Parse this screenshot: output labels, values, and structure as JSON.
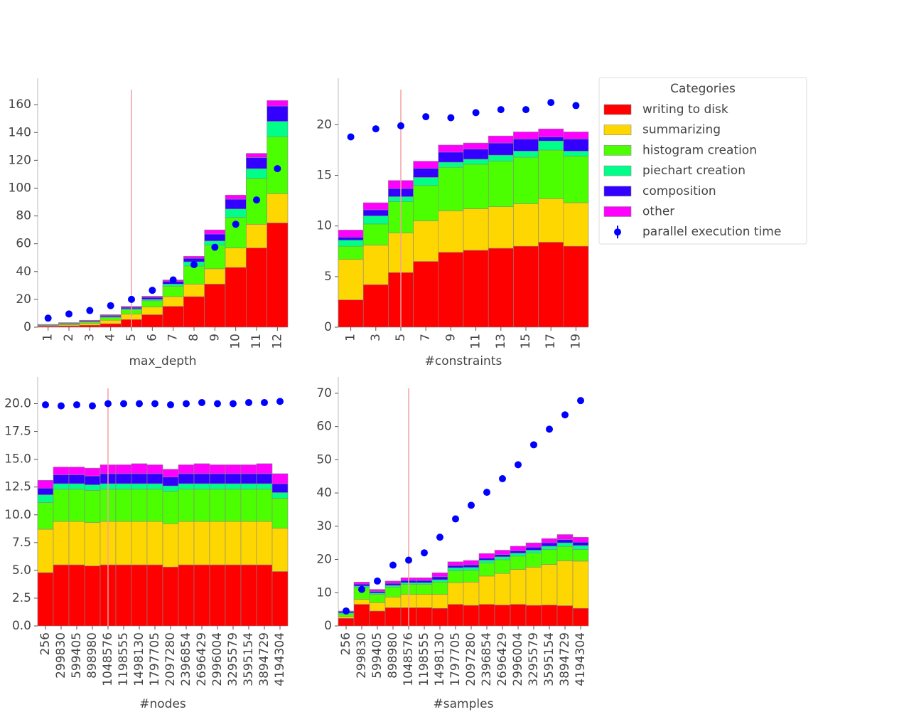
{
  "chart_data": [
    {
      "type": "stacked_bar",
      "xlabel": "max_depth",
      "legend_title": "Categories",
      "legend": "outside right",
      "vline_category": "5",
      "categories": [
        "1",
        "2",
        "3",
        "4",
        "5",
        "6",
        "7",
        "8",
        "9",
        "10",
        "11",
        "12"
      ],
      "ylim": [
        0,
        179
      ],
      "yticks": [
        0,
        20,
        40,
        60,
        80,
        100,
        120,
        140,
        160
      ],
      "series": [
        {
          "name": "writing to disk",
          "color": "#ff0000",
          "values": [
            0.8,
            1,
            1.5,
            2.5,
            5.5,
            9,
            15,
            22,
            31,
            43,
            57,
            75
          ]
        },
        {
          "name": "summarizing",
          "color": "#ffd700",
          "values": [
            0.4,
            0.8,
            1.2,
            2.5,
            4,
            5.5,
            7,
            9,
            11,
            14,
            17,
            21
          ]
        },
        {
          "name": "histogram creation",
          "color": "#4cff00",
          "values": [
            0.3,
            0.6,
            1,
            2,
            3,
            4.5,
            7.5,
            13,
            17,
            22,
            33,
            41
          ]
        },
        {
          "name": "piechart creation",
          "color": "#00ff88",
          "values": [
            0.1,
            0.2,
            0.3,
            0.5,
            0.8,
            1,
            1.5,
            3,
            3,
            6,
            7,
            11
          ]
        },
        {
          "name": "composition",
          "color": "#3300ff",
          "values": [
            0.2,
            0.4,
            0.6,
            1,
            1,
            1.5,
            2,
            2.5,
            5,
            7,
            8,
            11
          ]
        },
        {
          "name": "other",
          "color": "#ff00ff",
          "values": [
            0.2,
            0.3,
            0.4,
            0.5,
            0.7,
            0.8,
            1,
            1.5,
            3,
            3,
            3,
            4
          ]
        }
      ],
      "points": {
        "name": "parallel execution time",
        "color": "#0000ff",
        "values": [
          6.5,
          9.5,
          12,
          15.5,
          20,
          26.5,
          34,
          45,
          57.5,
          74,
          91.5,
          114
        ]
      }
    },
    {
      "type": "stacked_bar",
      "xlabel": "#constraints",
      "vline_category": "5",
      "categories": [
        "1",
        "3",
        "5",
        "7",
        "9",
        "11",
        "13",
        "15",
        "17",
        "19"
      ],
      "ylim": [
        0,
        24.6
      ],
      "yticks": [
        0,
        5,
        10,
        15,
        20
      ],
      "series": [
        {
          "values": [
            2.7,
            4.2,
            5.4,
            6.5,
            7.4,
            7.6,
            7.8,
            8,
            8.4,
            8
          ]
        },
        {
          "values": [
            4,
            3.9,
            3.9,
            4,
            4.1,
            4.1,
            4.1,
            4.2,
            4.3,
            4.3
          ]
        },
        {
          "values": [
            1.3,
            2.1,
            3.1,
            3.5,
            4.3,
            4.4,
            4.5,
            4.6,
            4.8,
            4.6
          ]
        },
        {
          "values": [
            0.6,
            0.8,
            0.5,
            0.8,
            0.5,
            0.5,
            0.6,
            0.6,
            0.9,
            0.5
          ]
        },
        {
          "values": [
            0.3,
            0.6,
            0.8,
            0.9,
            1,
            1,
            1.2,
            1.2,
            0.4,
            1.2
          ]
        },
        {
          "values": [
            0.7,
            0.7,
            0.8,
            0.7,
            0.7,
            0.6,
            0.7,
            0.7,
            0.8,
            0.7
          ]
        }
      ],
      "points": {
        "values": [
          18.8,
          19.6,
          19.9,
          20.8,
          20.7,
          21.2,
          21.5,
          21.5,
          22.2,
          21.9
        ]
      }
    },
    {
      "type": "stacked_bar",
      "xlabel": "#nodes",
      "vline_category": "1048576",
      "categories": [
        "256",
        "299830",
        "599405",
        "898980",
        "1048576",
        "1198555",
        "1498130",
        "1797705",
        "2097280",
        "2396854",
        "2696429",
        "2996004",
        "3295579",
        "3595154",
        "3894729",
        "4194304"
      ],
      "ylim": [
        0,
        22.4
      ],
      "yticks": [
        {
          "value": 0,
          "label": "0.0"
        },
        {
          "value": 2.5,
          "label": "2.5"
        },
        {
          "value": 5,
          "label": "5.0"
        },
        {
          "value": 7.5,
          "label": "7.5"
        },
        {
          "value": 10,
          "label": "10.0"
        },
        {
          "value": 12.5,
          "label": "12.5"
        },
        {
          "value": 15,
          "label": "15.0"
        },
        {
          "value": 17.5,
          "label": "17.5"
        },
        {
          "value": 20,
          "label": "20.0"
        }
      ],
      "series": [
        {
          "values": [
            4.8,
            5.5,
            5.5,
            5.4,
            5.5,
            5.5,
            5.5,
            5.5,
            5.3,
            5.5,
            5.5,
            5.5,
            5.5,
            5.5,
            5.5,
            4.9
          ]
        },
        {
          "values": [
            3.9,
            3.9,
            3.9,
            3.9,
            3.9,
            3.9,
            3.9,
            3.9,
            3.9,
            3.9,
            3.9,
            3.9,
            3.9,
            3.9,
            3.9,
            3.9
          ]
        },
        {
          "values": [
            2.4,
            2.9,
            2.9,
            2.9,
            2.9,
            2.9,
            2.9,
            2.9,
            2.9,
            2.9,
            2.9,
            2.9,
            2.9,
            2.9,
            2.9,
            2.7
          ]
        },
        {
          "values": [
            0.7,
            0.5,
            0.5,
            0.5,
            0.5,
            0.5,
            0.5,
            0.5,
            0.5,
            0.5,
            0.5,
            0.5,
            0.5,
            0.5,
            0.5,
            0.5
          ]
        },
        {
          "values": [
            0.6,
            0.8,
            0.8,
            0.8,
            0.9,
            0.9,
            0.9,
            0.9,
            0.8,
            0.9,
            0.9,
            0.9,
            0.9,
            0.9,
            0.9,
            0.8
          ]
        },
        {
          "values": [
            0.7,
            0.7,
            0.7,
            0.7,
            0.8,
            0.8,
            0.9,
            0.8,
            0.7,
            0.8,
            0.9,
            0.8,
            0.8,
            0.8,
            0.9,
            0.9
          ]
        }
      ],
      "points": {
        "values": [
          19.9,
          19.8,
          19.9,
          19.8,
          20,
          20,
          20,
          20,
          19.9,
          20,
          20.1,
          20,
          20,
          20.1,
          20.1,
          20.2
        ]
      }
    },
    {
      "type": "stacked_bar",
      "xlabel": "#samples",
      "vline_category": "1048576",
      "categories": [
        "256",
        "299830",
        "599405",
        "898980",
        "1048576",
        "1198555",
        "1498130",
        "1797705",
        "2097280",
        "2396854",
        "2696429",
        "2996004",
        "3295579",
        "3595154",
        "3894729",
        "4194304"
      ],
      "ylim": [
        0,
        74.9
      ],
      "yticks": [
        0,
        10,
        20,
        30,
        40,
        50,
        60,
        70
      ],
      "series": [
        {
          "values": [
            2.3,
            6.5,
            4.5,
            5.5,
            5.5,
            5.5,
            5.3,
            6.5,
            6.2,
            6.5,
            6.3,
            6.5,
            6.2,
            6.3,
            6.1,
            5.3
          ]
        },
        {
          "values": [
            0.5,
            1.5,
            2.5,
            3.2,
            4,
            4,
            4.2,
            6.5,
            7,
            8.5,
            9.5,
            10.5,
            11.5,
            12.2,
            13.5,
            14.2
          ]
        },
        {
          "values": [
            0.8,
            3.5,
            2.5,
            3,
            3,
            3,
            3.7,
            3.6,
            3.5,
            3.9,
            4.1,
            4,
            4.2,
            4.5,
            4.3,
            3.5
          ]
        },
        {
          "values": [
            0.3,
            0.5,
            0.4,
            0.5,
            0.5,
            0.5,
            0.7,
            0.9,
            0.9,
            0.9,
            0.9,
            0.9,
            0.9,
            1,
            1.1,
            1.2
          ]
        },
        {
          "values": [
            0.4,
            0.6,
            0.5,
            0.6,
            0.7,
            0.7,
            0.9,
            0.7,
            0.8,
            0.6,
            0.7,
            0.7,
            0.9,
            1,
            1,
            1
          ]
        },
        {
          "values": [
            0.2,
            0.6,
            0.6,
            0.7,
            0.8,
            0.8,
            1.2,
            1.1,
            1.3,
            1.4,
            1.3,
            1.4,
            1.3,
            1.3,
            1.5,
            1.5
          ]
        }
      ],
      "points": {
        "values": [
          4.5,
          11,
          13.5,
          18.3,
          19.8,
          22,
          26.7,
          32.2,
          36.3,
          40.2,
          44.3,
          48.5,
          54.5,
          59.2,
          63.5,
          67.8
        ]
      }
    }
  ]
}
